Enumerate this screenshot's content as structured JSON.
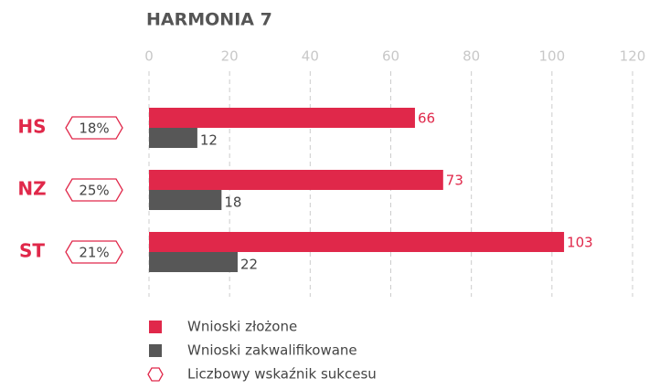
{
  "chart_data": {
    "type": "bar",
    "orientation": "horizontal",
    "title": "HARMONIA 7",
    "categories": [
      "HS",
      "NZ",
      "ST"
    ],
    "series": [
      {
        "name": "Wnioski złożone",
        "color": "#e0284a",
        "values": [
          66,
          73,
          103
        ]
      },
      {
        "name": "Wnioski zakwalifikowane",
        "color": "#575757",
        "values": [
          12,
          18,
          22
        ]
      },
      {
        "name": "Liczbowy wskaźnik sukcesu",
        "color": "#e0284a",
        "values": [
          18,
          25,
          21
        ],
        "value_labels": [
          "18%",
          "25%",
          "21%"
        ]
      }
    ],
    "xlim": [
      0,
      120
    ],
    "xticks": [
      0,
      20,
      40,
      60,
      80,
      100,
      120
    ],
    "grid": true
  }
}
